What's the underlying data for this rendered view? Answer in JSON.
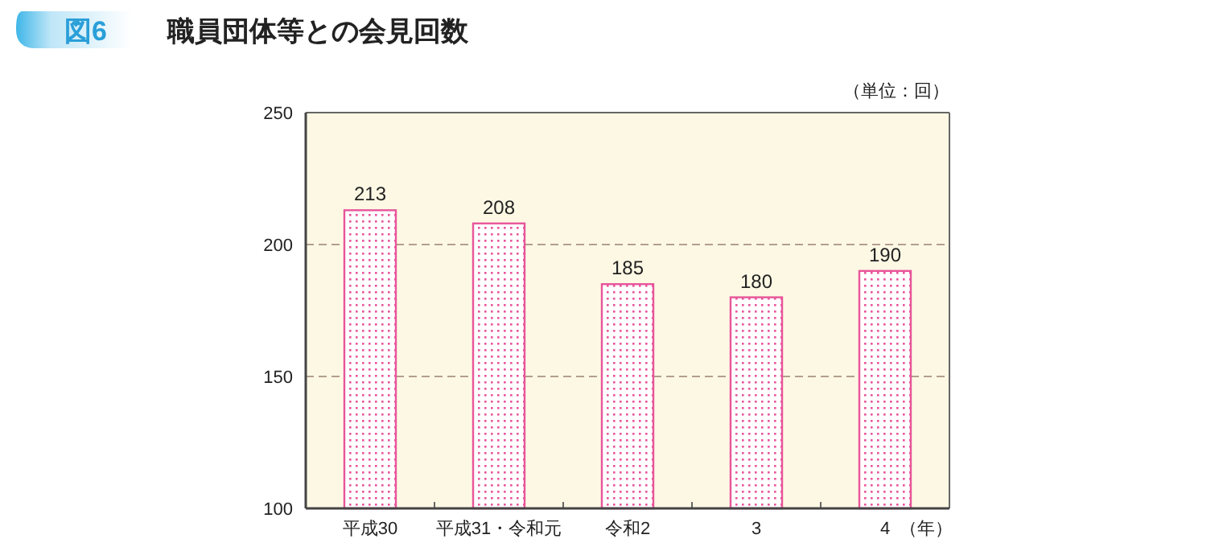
{
  "chart_data": {
    "type": "bar",
    "title": "職員団体等との会見回数",
    "annotations": [
      "図6"
    ],
    "ylabel": "（単位：回）",
    "xlabel": "（年）",
    "categories": [
      "平成30",
      "平成31・令和元",
      "令和2",
      "3",
      "4"
    ],
    "values": [
      213,
      208,
      185,
      180,
      190
    ],
    "color": "#e8559a",
    "ylim": [
      100,
      250
    ],
    "yticks": [
      100,
      150,
      200,
      250
    ],
    "grid": "y",
    "data_labels": true
  }
}
